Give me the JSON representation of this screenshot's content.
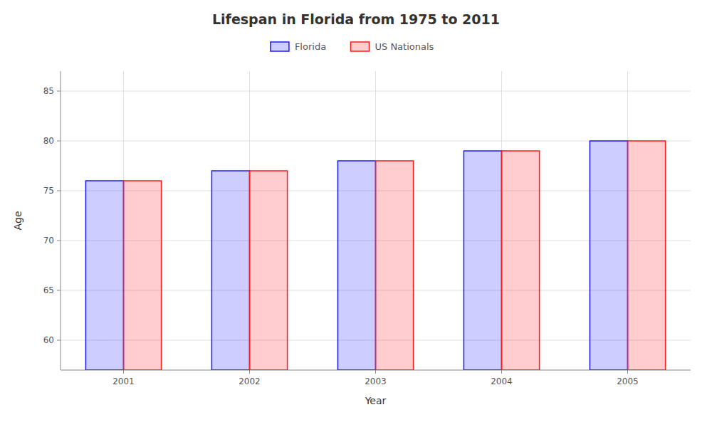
{
  "chart_data": {
    "type": "bar",
    "title": "Lifespan in Florida from 1975 to 2011",
    "x_label": "Year",
    "y_label": "Age",
    "categories": [
      "2001",
      "2002",
      "2003",
      "2004",
      "2005"
    ],
    "series": [
      {
        "name": "Florida",
        "color": "#1a1aff",
        "values": [
          76,
          77,
          78,
          79,
          80
        ]
      },
      {
        "name": "US Nationals",
        "color": "#ff1a1a",
        "values": [
          76,
          77,
          78,
          79,
          80
        ]
      }
    ],
    "ylim": [
      57,
      87
    ],
    "yticks": [
      60,
      65,
      70,
      75,
      80,
      85
    ],
    "grid": true,
    "legend": "top"
  }
}
